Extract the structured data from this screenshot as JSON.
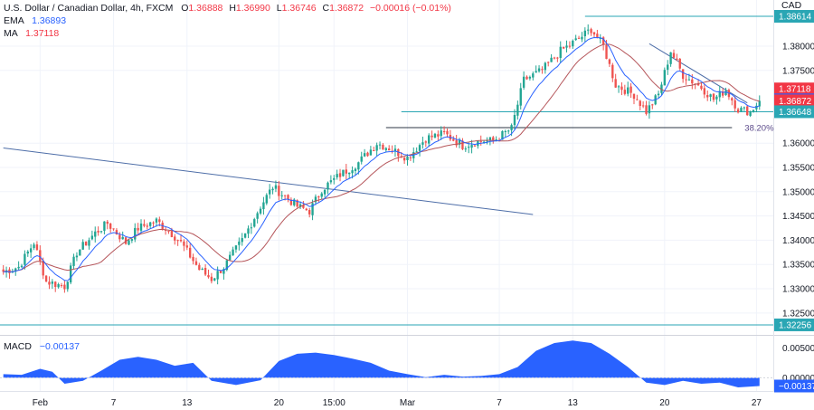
{
  "header": {
    "symbol": "U.S. Dollar / Canadian Dollar, 4h, FXCM",
    "open_key": "O",
    "open": "1.36888",
    "high_key": "H",
    "high": "1.36990",
    "low_key": "L",
    "low": "1.36746",
    "close_key": "C",
    "close": "1.36872",
    "change": "−0.00016 (−0.01%)",
    "ema_label": "EMA",
    "ema_value": "1.36893",
    "ma_label": "MA",
    "ma_value": "1.37118",
    "currency": "CAD"
  },
  "macd_header": {
    "label": "MACD",
    "value": "−0.00137"
  },
  "colors": {
    "up": "#22a593",
    "down": "#ef5350",
    "ema": "#2962ff",
    "ma": "#b5555a",
    "hline": "#2aa6b4",
    "trend": "#4e6ea8",
    "fib": "#2d3744",
    "macd": "#2962ff"
  },
  "chart_data": [
    {
      "type": "candlestick",
      "title": "U.S. Dollar / Canadian Dollar, 4h, FXCM",
      "ylim": [
        1.3205,
        1.3895
      ],
      "y_ticks": [
        "1.38000",
        "1.37500",
        "1.36000",
        "1.35500",
        "1.35000",
        "1.34500",
        "1.34000",
        "1.33500",
        "1.33000",
        "1.32500"
      ],
      "y_tick_values": [
        1.38,
        1.375,
        1.36,
        1.355,
        1.35,
        1.345,
        1.34,
        1.335,
        1.33,
        1.325
      ],
      "x_ticks": [
        "Feb",
        "7",
        "13",
        "20",
        "15:00",
        "Mar",
        "7",
        "13",
        "20",
        "27"
      ],
      "x_tick_bars": [
        12,
        36,
        60,
        90,
        108,
        132,
        162,
        186,
        216,
        246
      ],
      "bar_count": 252,
      "price_labels": [
        {
          "text": "1.38614",
          "value": 1.38614,
          "color": "#2aa6b4",
          "role": "horizontal-line"
        },
        {
          "text": "1.37118",
          "value": 1.37118,
          "color": "#f23645",
          "role": "MA"
        },
        {
          "text": "1.36893",
          "value": 1.36893,
          "color": "#2962ff",
          "role": "EMA"
        },
        {
          "text": "1.36872",
          "value": 1.36872,
          "color": "#f23645",
          "role": "last-price"
        },
        {
          "text": "1.36648",
          "value": 1.36648,
          "color": "#2aa6b4",
          "role": "horizontal-line"
        },
        {
          "text": "1.32256",
          "value": 1.32256,
          "color": "#2aa6b4",
          "role": "horizontal-line"
        }
      ],
      "series": [
        {
          "name": "EMA",
          "last": 1.36893
        },
        {
          "name": "MA",
          "last": 1.37118
        }
      ],
      "anchors": [
        {
          "bar": 0,
          "price": 1.3335
        },
        {
          "bar": 5,
          "price": 1.3345
        },
        {
          "bar": 10,
          "price": 1.3395
        },
        {
          "bar": 14,
          "price": 1.3315
        },
        {
          "bar": 20,
          "price": 1.3305
        },
        {
          "bar": 24,
          "price": 1.3375
        },
        {
          "bar": 30,
          "price": 1.3415
        },
        {
          "bar": 34,
          "price": 1.3435
        },
        {
          "bar": 40,
          "price": 1.3395
        },
        {
          "bar": 44,
          "price": 1.3425
        },
        {
          "bar": 50,
          "price": 1.344
        },
        {
          "bar": 54,
          "price": 1.342
        },
        {
          "bar": 58,
          "price": 1.3395
        },
        {
          "bar": 64,
          "price": 1.334
        },
        {
          "bar": 68,
          "price": 1.332
        },
        {
          "bar": 72,
          "price": 1.3345
        },
        {
          "bar": 78,
          "price": 1.34
        },
        {
          "bar": 84,
          "price": 1.347
        },
        {
          "bar": 88,
          "price": 1.351
        },
        {
          "bar": 92,
          "price": 1.349
        },
        {
          "bar": 96,
          "price": 1.347
        },
        {
          "bar": 100,
          "price": 1.346
        },
        {
          "bar": 104,
          "price": 1.3505
        },
        {
          "bar": 110,
          "price": 1.3535
        },
        {
          "bar": 116,
          "price": 1.356
        },
        {
          "bar": 122,
          "price": 1.36
        },
        {
          "bar": 126,
          "price": 1.359
        },
        {
          "bar": 132,
          "price": 1.357
        },
        {
          "bar": 138,
          "price": 1.361
        },
        {
          "bar": 144,
          "price": 1.362
        },
        {
          "bar": 150,
          "price": 1.3595
        },
        {
          "bar": 156,
          "price": 1.3605
        },
        {
          "bar": 160,
          "price": 1.3605
        },
        {
          "bar": 166,
          "price": 1.363
        },
        {
          "bar": 170,
          "price": 1.373
        },
        {
          "bar": 176,
          "price": 1.375
        },
        {
          "bar": 182,
          "price": 1.379
        },
        {
          "bar": 188,
          "price": 1.3815
        },
        {
          "bar": 192,
          "price": 1.3835
        },
        {
          "bar": 196,
          "price": 1.38
        },
        {
          "bar": 200,
          "price": 1.372
        },
        {
          "bar": 206,
          "price": 1.37
        },
        {
          "bar": 210,
          "price": 1.3665
        },
        {
          "bar": 214,
          "price": 1.37
        },
        {
          "bar": 218,
          "price": 1.379
        },
        {
          "bar": 222,
          "price": 1.374
        },
        {
          "bar": 228,
          "price": 1.3715
        },
        {
          "bar": 232,
          "price": 1.369
        },
        {
          "bar": 236,
          "price": 1.371
        },
        {
          "bar": 240,
          "price": 1.367
        },
        {
          "bar": 244,
          "price": 1.3665
        },
        {
          "bar": 247,
          "price": 1.36872
        }
      ],
      "horizontal_lines": [
        {
          "value": 1.38614,
          "from_bar": 190
        },
        {
          "value": 1.36648,
          "from_bar": 130
        },
        {
          "value": 1.32256,
          "from_bar": 0
        }
      ],
      "fib_line": {
        "label": "38.20%",
        "value": 1.3632,
        "from_bar": 125,
        "to_bar": 238
      },
      "trend_lines": [
        {
          "from": {
            "bar": 0,
            "price": 1.359
          },
          "to": {
            "bar": 173,
            "price": 1.3453
          }
        },
        {
          "from": {
            "bar": 211,
            "price": 1.3805
          },
          "to": {
            "bar": 243,
            "price": 1.3683
          }
        }
      ]
    },
    {
      "type": "area",
      "title": "MACD",
      "ylim": [
        -0.0022,
        0.007
      ],
      "y_ticks": [
        "0.00500",
        "0.00000",
        "−0.00137"
      ],
      "y_tick_values": [
        0.005,
        0.0,
        -0.00137
      ],
      "series": [
        {
          "name": "MACD",
          "points": [
            [
              0,
              0.0006
            ],
            [
              6,
              0.0005
            ],
            [
              12,
              0.0015
            ],
            [
              16,
              0.001
            ],
            [
              20,
              -0.001
            ],
            [
              26,
              -0.0005
            ],
            [
              32,
              0.0012
            ],
            [
              38,
              0.003
            ],
            [
              44,
              0.0035
            ],
            [
              50,
              0.003
            ],
            [
              56,
              0.002
            ],
            [
              62,
              0.0025
            ],
            [
              68,
              -0.0005
            ],
            [
              76,
              -0.0012
            ],
            [
              84,
              -0.0004
            ],
            [
              90,
              0.0028
            ],
            [
              96,
              0.004
            ],
            [
              102,
              0.0042
            ],
            [
              108,
              0.0038
            ],
            [
              114,
              0.0032
            ],
            [
              120,
              0.0025
            ],
            [
              126,
              0.0012
            ],
            [
              132,
              0.0006
            ],
            [
              138,
              0.0001
            ],
            [
              144,
              0.0005
            ],
            [
              150,
              0.0002
            ],
            [
              156,
              0.0003
            ],
            [
              162,
              0.0006
            ],
            [
              168,
              0.0018
            ],
            [
              174,
              0.0045
            ],
            [
              180,
              0.0058
            ],
            [
              186,
              0.0062
            ],
            [
              192,
              0.0058
            ],
            [
              198,
              0.004
            ],
            [
              204,
              0.0018
            ],
            [
              210,
              -0.0008
            ],
            [
              216,
              -0.0012
            ],
            [
              222,
              -0.0005
            ],
            [
              228,
              -0.001
            ],
            [
              234,
              -0.0008
            ],
            [
              240,
              -0.0016
            ],
            [
              247,
              -0.00137
            ]
          ]
        }
      ]
    }
  ]
}
